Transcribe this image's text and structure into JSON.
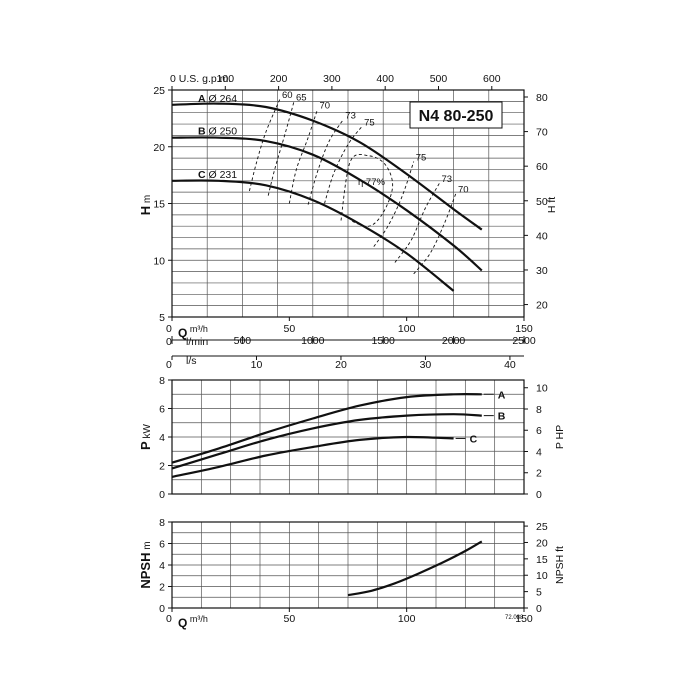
{
  "title": "N4 80-250",
  "footnote": "72.088",
  "chart_data": [
    {
      "type": "line",
      "name": "head",
      "ylabel": "H",
      "ylabel_unit": "m",
      "y2label": "H ft",
      "xlim": [
        0,
        150
      ],
      "ylim": [
        5,
        25
      ],
      "y_ticks": [
        5,
        10,
        15,
        20,
        25
      ],
      "x_ticks": [
        0,
        50,
        100,
        150
      ],
      "y2_ticks": [
        20,
        30,
        40,
        50,
        60,
        70,
        80
      ],
      "gpm_label": "U.S. g.p.m.",
      "gpm_ticks": [
        0,
        100,
        200,
        300,
        400,
        500,
        600
      ],
      "q_axis": {
        "label": "Q",
        "unit": "m³/h"
      },
      "lmin_axis": {
        "label": "l/min",
        "ticks": [
          0,
          500,
          1000,
          1500,
          2000,
          2500
        ]
      },
      "ls_axis": {
        "label": "l/s",
        "ticks": [
          0,
          10,
          20,
          30,
          40
        ]
      },
      "series": [
        {
          "name": "A",
          "diameter_label": "Ø 264",
          "x": [
            0,
            20,
            40,
            60,
            80,
            100,
            120,
            132
          ],
          "y": [
            23.7,
            23.8,
            23.5,
            22.3,
            20.4,
            17.6,
            14.5,
            12.7
          ]
        },
        {
          "name": "B",
          "diameter_label": "Ø 250",
          "x": [
            0,
            20,
            40,
            60,
            80,
            100,
            120,
            132
          ],
          "y": [
            20.8,
            20.8,
            20.5,
            19.3,
            17.1,
            14.4,
            11.3,
            9.1
          ]
        },
        {
          "name": "C",
          "diameter_label": "Ø 231",
          "x": [
            0,
            20,
            40,
            60,
            80,
            100,
            120
          ],
          "y": [
            17.0,
            17.0,
            16.6,
            15.3,
            13.2,
            10.6,
            7.3
          ]
        }
      ],
      "efficiency_curves": [
        {
          "label": "60",
          "x": [
            33,
            36,
            40,
            46
          ],
          "y": [
            16.1,
            18.6,
            21.3,
            24.2
          ]
        },
        {
          "label": "65",
          "x": [
            41,
            44,
            48,
            52
          ],
          "y": [
            15.7,
            18.2,
            21.0,
            24.0
          ]
        },
        {
          "label": "70",
          "x": [
            50,
            53,
            58,
            62
          ],
          "y": [
            15.0,
            18.0,
            20.8,
            23.3
          ]
        },
        {
          "label": "73",
          "x": [
            58,
            62,
            67,
            73
          ],
          "y": [
            14.9,
            17.8,
            20.5,
            22.4
          ]
        },
        {
          "label": "75",
          "x": [
            65,
            69,
            75,
            81
          ],
          "y": [
            15.0,
            17.7,
            20.2,
            21.8
          ]
        },
        {
          "label": "75",
          "x": [
            86,
            92,
            98,
            103
          ],
          "y": [
            11.2,
            13.0,
            15.6,
            18.7
          ]
        },
        {
          "label": "73",
          "x": [
            95,
            102,
            108,
            114
          ],
          "y": [
            9.8,
            11.8,
            14.6,
            16.8
          ]
        },
        {
          "label": "70",
          "x": [
            103,
            110,
            116,
            121
          ],
          "y": [
            8.8,
            10.6,
            13.2,
            15.9
          ]
        }
      ],
      "efficiency_peak": {
        "label": "η 77%",
        "x": [
          72,
          76,
          84,
          91,
          94,
          90,
          84,
          76
        ],
        "y": [
          13.5,
          18.7,
          19.2,
          18.4,
          16.5,
          14.2,
          13.0,
          13.5
        ]
      }
    },
    {
      "type": "line",
      "name": "power",
      "ylabel": "P",
      "ylabel_unit": "kW",
      "y2label": "P HP",
      "xlim": [
        0,
        150
      ],
      "ylim": [
        0,
        8
      ],
      "y_ticks": [
        0,
        2,
        4,
        6,
        8
      ],
      "y2_ticks": [
        0,
        2,
        4,
        6,
        8,
        10
      ],
      "series": [
        {
          "name": "A",
          "x": [
            0,
            20,
            40,
            60,
            80,
            100,
            120,
            132
          ],
          "y": [
            2.2,
            3.2,
            4.3,
            5.3,
            6.2,
            6.8,
            7.0,
            7.0
          ]
        },
        {
          "name": "B",
          "x": [
            0,
            20,
            40,
            60,
            80,
            100,
            120,
            132
          ],
          "y": [
            1.8,
            2.8,
            3.8,
            4.6,
            5.2,
            5.5,
            5.6,
            5.5
          ]
        },
        {
          "name": "C",
          "x": [
            0,
            20,
            40,
            60,
            80,
            100,
            120
          ],
          "y": [
            1.2,
            1.9,
            2.7,
            3.3,
            3.8,
            4.0,
            3.9
          ]
        }
      ]
    },
    {
      "type": "line",
      "name": "npsh",
      "ylabel": "NPSH",
      "ylabel_unit": "m",
      "y2label": "NPSH ft",
      "xlim": [
        0,
        150
      ],
      "ylim": [
        0,
        8
      ],
      "y_ticks": [
        0,
        2,
        4,
        6,
        8
      ],
      "x_ticks": [
        0,
        50,
        100,
        150
      ],
      "y2_ticks": [
        0,
        5,
        10,
        15,
        20,
        25
      ],
      "q_axis": {
        "label": "Q",
        "unit": "m³/h"
      },
      "series": [
        {
          "name": "NPSH",
          "x": [
            75,
            85,
            95,
            105,
            115,
            125,
            132
          ],
          "y": [
            1.2,
            1.6,
            2.3,
            3.2,
            4.2,
            5.3,
            6.2
          ]
        }
      ]
    }
  ]
}
